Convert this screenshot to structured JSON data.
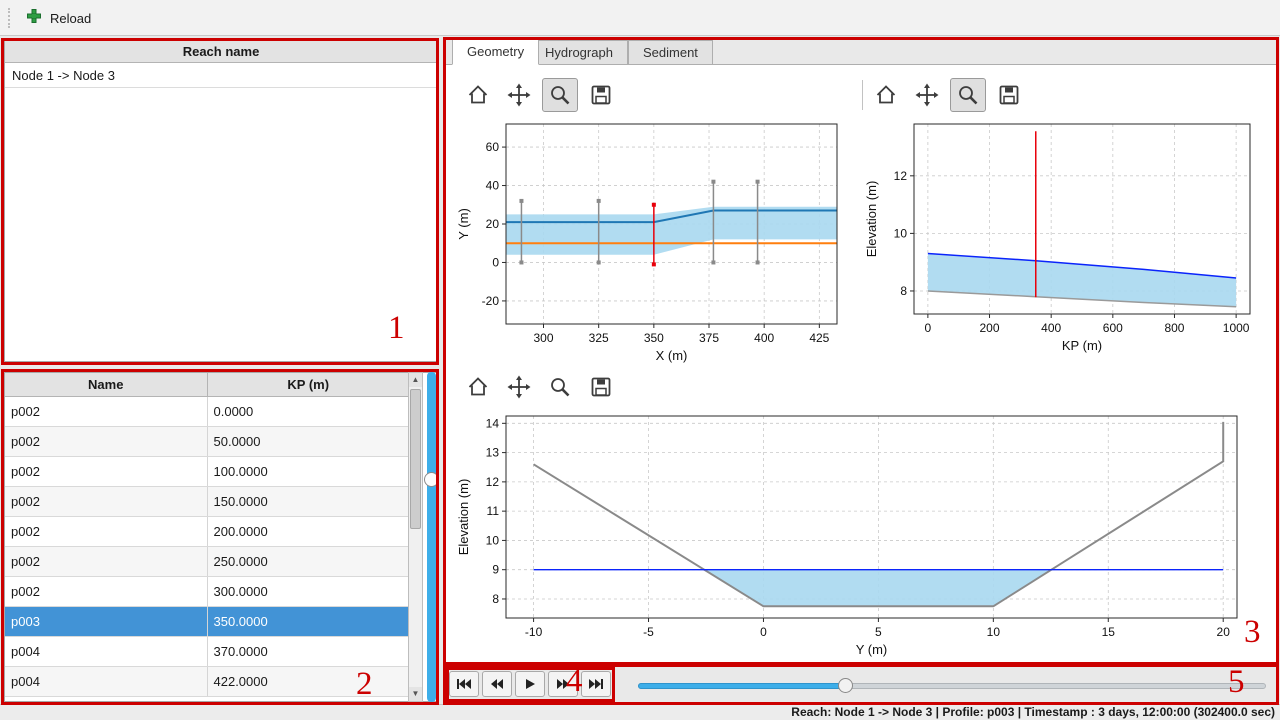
{
  "top_toolbar": {
    "reload_label": "Reload"
  },
  "reach_panel": {
    "header": "Reach name",
    "items": [
      "Node 1 -> Node 3"
    ]
  },
  "profile_table": {
    "columns": [
      "Name",
      "KP (m)"
    ],
    "rows": [
      [
        "p002",
        "0.0000"
      ],
      [
        "p002",
        "50.0000"
      ],
      [
        "p002",
        "100.0000"
      ],
      [
        "p002",
        "150.0000"
      ],
      [
        "p002",
        "200.0000"
      ],
      [
        "p002",
        "250.0000"
      ],
      [
        "p002",
        "300.0000"
      ],
      [
        "p003",
        "350.0000"
      ],
      [
        "p004",
        "370.0000"
      ],
      [
        "p004",
        "422.0000"
      ]
    ],
    "selected_row": 7,
    "selection_color": "#4293d6"
  },
  "tabs": [
    {
      "label": "Geometry",
      "active": true
    },
    {
      "label": "Hydrograph",
      "active": false
    },
    {
      "label": "Sediment",
      "active": false
    }
  ],
  "plot_toolbars": {
    "icons": [
      "home-icon",
      "pan-icon",
      "zoom-icon",
      "save-icon"
    ],
    "top_left_pressed": "zoom",
    "top_right_pressed": "zoom",
    "bottom_pressed": null
  },
  "chart_data": [
    {
      "type": "line",
      "title": "",
      "xlabel": "X (m)",
      "ylabel": "Y (m)",
      "xlim": [
        283,
        433
      ],
      "ylim": [
        -32,
        72
      ],
      "xticks": [
        300,
        325,
        350,
        375,
        400,
        425
      ],
      "yticks": [
        -20,
        0,
        20,
        40,
        60
      ],
      "grid": true,
      "legend": "none",
      "areas": [
        {
          "name": "channel-band",
          "color": "#a8d8ef",
          "opacity": 0.9,
          "points": [
            [
              283,
              25
            ],
            [
              350,
              25
            ],
            [
              377,
              29
            ],
            [
              433,
              29
            ],
            [
              433,
              12
            ],
            [
              377,
              12
            ],
            [
              350,
              4
            ],
            [
              283,
              4
            ]
          ]
        }
      ],
      "lines": [
        {
          "name": "bank-line",
          "color": "#1f77b4",
          "width": 2,
          "points": [
            [
              283,
              21
            ],
            [
              350,
              21
            ],
            [
              377,
              27
            ],
            [
              433,
              27
            ]
          ]
        },
        {
          "name": "bed-line",
          "color": "#ff7f0e",
          "width": 2,
          "points": [
            [
              283,
              10
            ],
            [
              433,
              10
            ]
          ]
        }
      ],
      "vlines": [
        {
          "x": 290,
          "y0": 0,
          "y1": 32,
          "color": "#8a8a8a",
          "width": 1.5,
          "marker": true
        },
        {
          "x": 325,
          "y0": 0,
          "y1": 32,
          "color": "#8a8a8a",
          "width": 1.5,
          "marker": true
        },
        {
          "x": 350,
          "y0": -1,
          "y1": 30,
          "color": "#e8000b",
          "width": 1.5,
          "marker": true
        },
        {
          "x": 377,
          "y0": 0,
          "y1": 42,
          "color": "#8a8a8a",
          "width": 1.5,
          "marker": true
        },
        {
          "x": 397,
          "y0": 0,
          "y1": 42,
          "color": "#8a8a8a",
          "width": 1.5,
          "marker": true
        }
      ]
    },
    {
      "type": "line",
      "title": "",
      "xlabel": "KP (m)",
      "ylabel": "Elevation (m)",
      "xlim": [
        -45,
        1045
      ],
      "ylim": [
        7.2,
        13.8
      ],
      "xticks": [
        0,
        200,
        400,
        600,
        800,
        1000
      ],
      "yticks": [
        8,
        10,
        12
      ],
      "grid": true,
      "legend": "none",
      "areas": [
        {
          "name": "water-body",
          "color": "#a8d8ef",
          "opacity": 0.9,
          "points": [
            [
              0,
              9.3
            ],
            [
              350,
              9.05
            ],
            [
              700,
              8.75
            ],
            [
              1000,
              8.45
            ],
            [
              1000,
              7.45
            ],
            [
              700,
              7.6
            ],
            [
              350,
              7.8
            ],
            [
              0,
              8.0
            ]
          ]
        }
      ],
      "lines": [
        {
          "name": "water-level",
          "color": "#0b24fb",
          "width": 1.5,
          "points": [
            [
              0,
              9.3
            ],
            [
              350,
              9.05
            ],
            [
              700,
              8.75
            ],
            [
              1000,
              8.45
            ]
          ]
        },
        {
          "name": "bed-profile",
          "color": "#9a9a9a",
          "width": 1.5,
          "points": [
            [
              0,
              8.0
            ],
            [
              350,
              7.8
            ],
            [
              700,
              7.6
            ],
            [
              1000,
              7.45
            ]
          ]
        }
      ],
      "vlines": [
        {
          "x": 350,
          "y0": 7.78,
          "y1": 13.55,
          "color": "#e8000b",
          "width": 1.5,
          "marker": false
        }
      ]
    },
    {
      "type": "line",
      "title": "",
      "xlabel": "Y (m)",
      "ylabel": "Elevation (m)",
      "xlim": [
        -11.2,
        20.6
      ],
      "ylim": [
        7.35,
        14.25
      ],
      "xticks": [
        -10,
        -5,
        0,
        5,
        10,
        15,
        20
      ],
      "yticks": [
        8,
        9,
        10,
        11,
        12,
        13,
        14
      ],
      "grid": true,
      "legend": "none",
      "areas": [
        {
          "name": "water-area",
          "color": "#a8d8ef",
          "opacity": 0.9,
          "points": [
            [
              -2.58,
              9
            ],
            [
              0,
              7.75
            ],
            [
              10,
              7.75
            ],
            [
              12.53,
              9
            ]
          ]
        }
      ],
      "lines": [
        {
          "name": "cross-section-bed",
          "color": "#8a8a8a",
          "width": 2,
          "points": [
            [
              -10,
              12.6
            ],
            [
              0,
              7.75
            ],
            [
              10,
              7.75
            ],
            [
              20,
              12.7
            ],
            [
              20,
              14.05
            ]
          ]
        },
        {
          "name": "water-level",
          "color": "#0b24fb",
          "width": 1.3,
          "points": [
            [
              -10,
              9
            ],
            [
              20,
              9
            ]
          ]
        }
      ],
      "vlines": []
    }
  ],
  "playback": {
    "buttons": [
      "skip-to-start",
      "rewind",
      "play",
      "fast-forward",
      "skip-to-end"
    ]
  },
  "slider": {
    "value_pct": 33
  },
  "status_bar": {
    "text": "Reach: Node 1 -> Node 3 | Profile: p003 | Timestamp : 3 days, 12:00:00 (302400.0 sec)"
  },
  "annotations": {
    "color": "#cc0000",
    "labels": [
      "1",
      "2",
      "3",
      "4",
      "5"
    ]
  }
}
